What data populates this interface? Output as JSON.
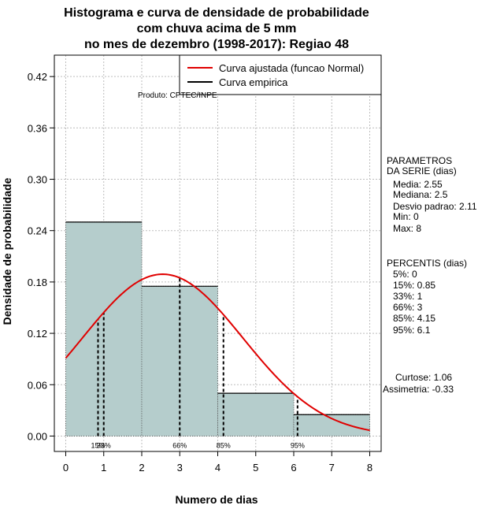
{
  "chart_data": {
    "type": "histogram",
    "title_lines": [
      "Histograma e curva de densidade de probabilidade",
      "com chuva acima de 5 mm",
      "no mes de dezembro (1998-2017): Regiao 48"
    ],
    "xlabel": "Numero de dias",
    "ylabel": "Densidade de probabilidade",
    "xlim": [
      -0.3,
      8.3
    ],
    "ylim": [
      -0.018,
      0.445
    ],
    "x_ticks": [
      0,
      1,
      2,
      3,
      4,
      5,
      6,
      7,
      8
    ],
    "y_ticks": [
      0.0,
      0.06,
      0.12,
      0.18,
      0.24,
      0.3,
      0.36,
      0.42
    ],
    "y_tick_labels": [
      "0.00",
      "0.06",
      "0.12",
      "0.18",
      "0.24",
      "0.30",
      "0.36",
      "0.42"
    ],
    "x_tick_labels": [
      "0",
      "1",
      "2",
      "3",
      "4",
      "5",
      "6",
      "7",
      "8"
    ],
    "grid": true,
    "bins": [
      {
        "x0": 0,
        "x1": 2,
        "density": 0.25
      },
      {
        "x0": 2,
        "x1": 4,
        "density": 0.175
      },
      {
        "x0": 4,
        "x1": 6,
        "density": 0.05
      },
      {
        "x0": 6,
        "x1": 8,
        "density": 0.025
      }
    ],
    "normal_fit": {
      "mean": 2.55,
      "sd": 2.11,
      "x_range": [
        0,
        8
      ],
      "color": "#e00000"
    },
    "percentile_lines": [
      {
        "label": "15%",
        "x": 0.85
      },
      {
        "label": "33%",
        "x": 1
      },
      {
        "label": "66%",
        "x": 3
      },
      {
        "label": "85%",
        "x": 4.15
      },
      {
        "label": "95%",
        "x": 6.1
      }
    ],
    "legend": {
      "entries": [
        {
          "label": "Curva ajustada (funcao Normal)",
          "color": "#e00000"
        },
        {
          "label": "Curva empirica",
          "color": "#000000"
        }
      ],
      "position": "top-right"
    },
    "annotation": "Produto: CPTEC/INPE",
    "colors": {
      "bar_fill": "#b5cdcc",
      "grid": "#bdbdbd"
    }
  },
  "side_panel": {
    "params_title": [
      "PARAMETROS",
      "DA SERIE (dias)"
    ],
    "params": [
      "Media: 2.55",
      "Mediana: 2.5",
      "Desvio padrao: 2.11",
      "Min: 0",
      "Max: 8"
    ],
    "percentis_title": "PERCENTIS (dias)",
    "percentis": [
      "5%: 0",
      "15%: 0.85",
      "33%: 1",
      "66%: 3",
      "85%: 4.15",
      "95%: 6.1"
    ],
    "curtose": "Curtose: 1.06",
    "assimetria": "Assimetria: -0.33"
  }
}
